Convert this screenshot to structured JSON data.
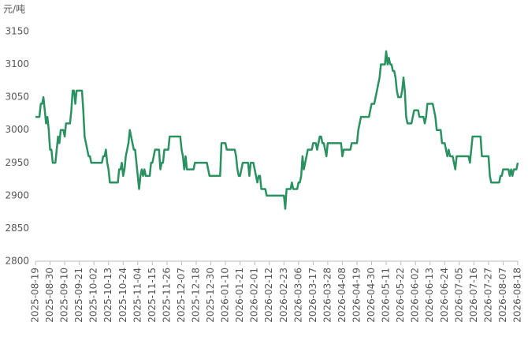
{
  "chart_data": {
    "type": "line",
    "ylabel": "元/吨",
    "color": "#2a9160",
    "ylim": [
      2800,
      3150
    ],
    "yticks": [
      2800,
      2850,
      2900,
      2950,
      3000,
      3050,
      3100,
      3150
    ],
    "grid": false,
    "categories": [
      "2025-08-19",
      null,
      null,
      null,
      null,
      null,
      null,
      null,
      null,
      null,
      null,
      "2025-08-30",
      null,
      null,
      null,
      null,
      null,
      null,
      null,
      null,
      null,
      null,
      "2025-09-10",
      null,
      null,
      null,
      null,
      null,
      null,
      null,
      null,
      null,
      null,
      "2025-09-21",
      null,
      null,
      null,
      null,
      null,
      null,
      null,
      null,
      null,
      null,
      "2025-10-02",
      null,
      null,
      null,
      null,
      null,
      null,
      null,
      null,
      null,
      null,
      "2025-10-13",
      null,
      null,
      null,
      null,
      null,
      null,
      null,
      null,
      null,
      null,
      "2025-10-24",
      null,
      null,
      null,
      null,
      null,
      null,
      null,
      null,
      null,
      null,
      "2025-11-04",
      null,
      null,
      null,
      null,
      null,
      null,
      null,
      null,
      null,
      null,
      "2025-11-15",
      null,
      null,
      null,
      null,
      null,
      null,
      null,
      null,
      null,
      null,
      "2025-11-26",
      null,
      null,
      null,
      null,
      null,
      null,
      null,
      null,
      null,
      null,
      "2025-12-07",
      null,
      null,
      null,
      null,
      null,
      null,
      null,
      null,
      null,
      null,
      "2025-12-18",
      null,
      null,
      null,
      null,
      null,
      null,
      null,
      null,
      null,
      null,
      "2025-12-30",
      null,
      null,
      null,
      null,
      null,
      null,
      null,
      null,
      null,
      null,
      "2026-01-10",
      null,
      null,
      null,
      null,
      null,
      null,
      null,
      null,
      null,
      null,
      "2026-01-21",
      null,
      null,
      null,
      null,
      null,
      null,
      null,
      null,
      null,
      null,
      "2026-02-01",
      null,
      null,
      null,
      null,
      null,
      null,
      null,
      null,
      null,
      null,
      "2026-02-12",
      null,
      null,
      null,
      null,
      null,
      null,
      null,
      null,
      null,
      null,
      "2026-02-23",
      null,
      null,
      null,
      null,
      null,
      null,
      null,
      null,
      null,
      null,
      "2026-03-06",
      null,
      null,
      null,
      null,
      null,
      null,
      null,
      null,
      null,
      null,
      "2026-03-17",
      null,
      null,
      null,
      null,
      null,
      null,
      null,
      null,
      null,
      null,
      "2026-03-28",
      null,
      null,
      null,
      null,
      null,
      null,
      null,
      null,
      null,
      null,
      "2026-04-08",
      null,
      null,
      null,
      null,
      null,
      null,
      null,
      null,
      null,
      null,
      "2026-04-19",
      null,
      null,
      null,
      null,
      null,
      null,
      null,
      null,
      null,
      null,
      "2026-04-30",
      null,
      null,
      null,
      null,
      null,
      null,
      null,
      null,
      null,
      null,
      "2026-05-11",
      null,
      null,
      null,
      null,
      null,
      null,
      null,
      null,
      null,
      null,
      "2026-05-22",
      null,
      null,
      null,
      null,
      null,
      null,
      null,
      null,
      null,
      null,
      "2026-06-02",
      null,
      null,
      null,
      null,
      null,
      null,
      null,
      null,
      null,
      null,
      "2026-06-13",
      null,
      null,
      null,
      null,
      null,
      null,
      null,
      null,
      null,
      null,
      "2026-06-24",
      null,
      null,
      null,
      null,
      null,
      null,
      null,
      null,
      null,
      null,
      "2026-07-05",
      null,
      null,
      null,
      null,
      null,
      null,
      null,
      null,
      null,
      null,
      "2026-07-16",
      null,
      null,
      null,
      null,
      null,
      null,
      null,
      null,
      null,
      null,
      "2026-07-27",
      null,
      null,
      null,
      null,
      null,
      null,
      null,
      null,
      null,
      null,
      "2026-08-07",
      null,
      null,
      null,
      null,
      null,
      null,
      null,
      null,
      null,
      null,
      "2026-08-18"
    ],
    "values": [
      3020,
      3020,
      3020,
      3020,
      3040,
      3040,
      3050,
      3030,
      3010,
      3020,
      3000,
      2970,
      2970,
      2950,
      2950,
      2950,
      2970,
      2990,
      2980,
      3000,
      3000,
      3000,
      2990,
      3010,
      3010,
      3010,
      3010,
      3030,
      3060,
      3060,
      3040,
      3060,
      3060,
      3060,
      3060,
      3060,
      3030,
      2990,
      2980,
      2970,
      2960,
      2960,
      2950,
      2950,
      2950,
      2950,
      2950,
      2950,
      2950,
      2950,
      2950,
      2960,
      2960,
      2970,
      2950,
      2940,
      2920,
      2920,
      2920,
      2920,
      2920,
      2920,
      2920,
      2940,
      2940,
      2950,
      2930,
      2940,
      2960,
      2970,
      2980,
      3000,
      2990,
      2980,
      2970,
      2970,
      2950,
      2930,
      2910,
      2930,
      2940,
      2930,
      2940,
      2930,
      2930,
      2930,
      2930,
      2950,
      2950,
      2960,
      2970,
      2970,
      2970,
      2970,
      2940,
      2950,
      2950,
      2970,
      2970,
      2970,
      2970,
      2990,
      2990,
      2990,
      2990,
      2990,
      2990,
      2990,
      2990,
      2990,
      2970,
      2960,
      2940,
      2960,
      2940,
      2940,
      2940,
      2940,
      2940,
      2940,
      2950,
      2950,
      2950,
      2950,
      2950,
      2950,
      2950,
      2950,
      2950,
      2950,
      2940,
      2930,
      2930,
      2930,
      2930,
      2930,
      2930,
      2930,
      2930,
      2930,
      2980,
      2980,
      2980,
      2980,
      2970,
      2970,
      2970,
      2970,
      2970,
      2970,
      2970,
      2960,
      2940,
      2930,
      2930,
      2940,
      2950,
      2950,
      2950,
      2950,
      2950,
      2930,
      2950,
      2950,
      2950,
      2940,
      2930,
      2920,
      2930,
      2930,
      2910,
      2910,
      2910,
      2910,
      2900,
      2900,
      2900,
      2900,
      2900,
      2900,
      2900,
      2900,
      2900,
      2900,
      2900,
      2900,
      2900,
      2900,
      2880,
      2910,
      2910,
      2910,
      2910,
      2920,
      2910,
      2910,
      2910,
      2910,
      2920,
      2920,
      2930,
      2960,
      2940,
      2950,
      2960,
      2970,
      2970,
      2970,
      2970,
      2980,
      2980,
      2980,
      2970,
      2980,
      2990,
      2990,
      2980,
      2980,
      2970,
      2960,
      2980,
      2980,
      2980,
      2980,
      2980,
      2980,
      2980,
      2980,
      2980,
      2980,
      2980,
      2960,
      2970,
      2970,
      2970,
      2970,
      2970,
      2970,
      2980,
      2980,
      2980,
      2980,
      2980,
      3000,
      3010,
      3020,
      3020,
      3020,
      3020,
      3020,
      3020,
      3020,
      3030,
      3040,
      3040,
      3040,
      3050,
      3060,
      3070,
      3080,
      3100,
      3100,
      3100,
      3100,
      3120,
      3100,
      3110,
      3100,
      3100,
      3090,
      3090,
      3080,
      3060,
      3050,
      3050,
      3050,
      3060,
      3080,
      3060,
      3020,
      3010,
      3010,
      3010,
      3010,
      3020,
      3030,
      3030,
      3030,
      3030,
      3020,
      3020,
      3020,
      3020,
      3010,
      3020,
      3040,
      3040,
      3040,
      3040,
      3040,
      3030,
      3020,
      3000,
      3000,
      3000,
      3000,
      2980,
      2980,
      2980,
      2970,
      2960,
      2970,
      2960,
      2960,
      2960,
      2950,
      2940,
      2960,
      2960,
      2960,
      2960,
      2960,
      2960,
      2960,
      2960,
      2960,
      2960,
      2950,
      2970,
      2990,
      2990,
      2990,
      2990,
      2990,
      2990,
      2990,
      2960,
      2960,
      2960,
      2960,
      2960,
      2960,
      2930,
      2920,
      2920,
      2920,
      2920,
      2920,
      2920,
      2920,
      2930,
      2930,
      2940,
      2940,
      2940,
      2940,
      2940,
      2930,
      2940,
      2930,
      2940,
      2940,
      2940,
      2950
    ]
  }
}
